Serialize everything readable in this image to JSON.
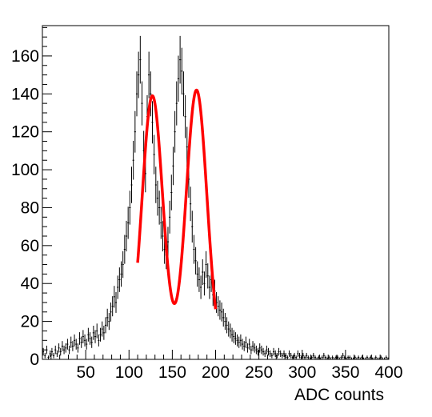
{
  "chart_data": {
    "type": "histogram",
    "title": "",
    "xlabel": "ADC counts",
    "ylabel": "",
    "xlim": [
      0,
      400
    ],
    "ylim": [
      0,
      176
    ],
    "x_ticks": [
      50,
      100,
      150,
      200,
      250,
      300,
      350,
      400
    ],
    "y_ticks": [
      0,
      20,
      40,
      60,
      80,
      100,
      120,
      140,
      160
    ],
    "grid": false,
    "legend": "none",
    "bin_width": 2,
    "series": [
      {
        "type": "histogram_with_errors",
        "color": "#000000",
        "x": [
          1,
          3,
          5,
          7,
          9,
          11,
          13,
          15,
          17,
          19,
          21,
          23,
          25,
          27,
          29,
          31,
          33,
          35,
          37,
          39,
          41,
          43,
          45,
          47,
          49,
          51,
          53,
          55,
          57,
          59,
          61,
          63,
          65,
          67,
          69,
          71,
          73,
          75,
          77,
          79,
          81,
          83,
          85,
          87,
          89,
          91,
          93,
          95,
          97,
          99,
          101,
          103,
          105,
          107,
          109,
          111,
          113,
          115,
          117,
          119,
          121,
          123,
          125,
          127,
          129,
          131,
          133,
          135,
          137,
          139,
          141,
          143,
          145,
          147,
          149,
          151,
          153,
          155,
          157,
          159,
          161,
          163,
          165,
          167,
          169,
          171,
          173,
          175,
          177,
          179,
          181,
          183,
          185,
          187,
          189,
          191,
          193,
          195,
          197,
          199,
          201,
          203,
          205,
          207,
          209,
          211,
          213,
          215,
          217,
          219,
          221,
          223,
          225,
          227,
          229,
          231,
          233,
          235,
          237,
          239,
          241,
          243,
          245,
          247,
          249,
          251,
          253,
          255,
          257,
          259,
          261,
          263,
          265,
          267,
          269,
          271,
          273,
          275,
          277,
          279,
          281,
          283,
          285,
          287,
          289,
          291,
          293,
          295,
          297,
          299,
          301,
          303,
          305,
          307,
          309,
          311,
          313,
          315,
          317,
          319,
          321,
          323,
          325,
          327,
          329,
          331,
          333,
          335,
          337,
          339,
          341,
          343,
          345,
          347,
          349,
          351,
          353,
          355,
          357,
          359,
          361,
          363,
          365,
          367,
          369,
          371,
          373,
          375,
          377,
          379,
          381,
          383,
          385,
          387,
          389,
          391,
          393,
          395,
          397,
          399
        ],
        "values": [
          4,
          2,
          5,
          1,
          3,
          4,
          2,
          5,
          3,
          6,
          4,
          7,
          5,
          6,
          8,
          5,
          9,
          7,
          10,
          8,
          6,
          11,
          9,
          12,
          10,
          8,
          13,
          11,
          9,
          14,
          12,
          15,
          10,
          13,
          16,
          14,
          18,
          22,
          20,
          25,
          28,
          33,
          30,
          38,
          42,
          45,
          50,
          58,
          65,
          72,
          80,
          92,
          105,
          120,
          140,
          150,
          158,
          135,
          110,
          98,
          128,
          150,
          140,
          125,
          108,
          92,
          85,
          80,
          72,
          65,
          58,
          55,
          62,
          75,
          88,
          102,
          120,
          135,
          148,
          158,
          152,
          140,
          128,
          112,
          95,
          82,
          70,
          58,
          52,
          45,
          42,
          38,
          46,
          40,
          50,
          44,
          38,
          42,
          34,
          36,
          30,
          28,
          26,
          25,
          22,
          20,
          18,
          16,
          15,
          13,
          12,
          11,
          10,
          9,
          10,
          8,
          7,
          9,
          6,
          8,
          5,
          7,
          6,
          5,
          4,
          6,
          5,
          4,
          3,
          5,
          4,
          3,
          2,
          4,
          3,
          2,
          4,
          3,
          2,
          3,
          2,
          1,
          3,
          2,
          1,
          2,
          1,
          3,
          2,
          1,
          2,
          1,
          2,
          1,
          0,
          1,
          2,
          1,
          0,
          1,
          0,
          1,
          2,
          1,
          0,
          1,
          0,
          1,
          0,
          1,
          1,
          0,
          1,
          2,
          1,
          0,
          1,
          1,
          0,
          0,
          1,
          0,
          1,
          0,
          1,
          0,
          0,
          1,
          0,
          1,
          0,
          0,
          1,
          0,
          0,
          1,
          0,
          0,
          1,
          0
        ]
      },
      {
        "type": "fit_curve",
        "color": "#ff0000",
        "x_range": [
          110,
          200
        ],
        "components": [
          {
            "amplitude": 139,
            "mean": 127,
            "sigma": 12
          },
          {
            "amplitude": 142,
            "mean": 178,
            "sigma": 12
          }
        ]
      }
    ]
  }
}
